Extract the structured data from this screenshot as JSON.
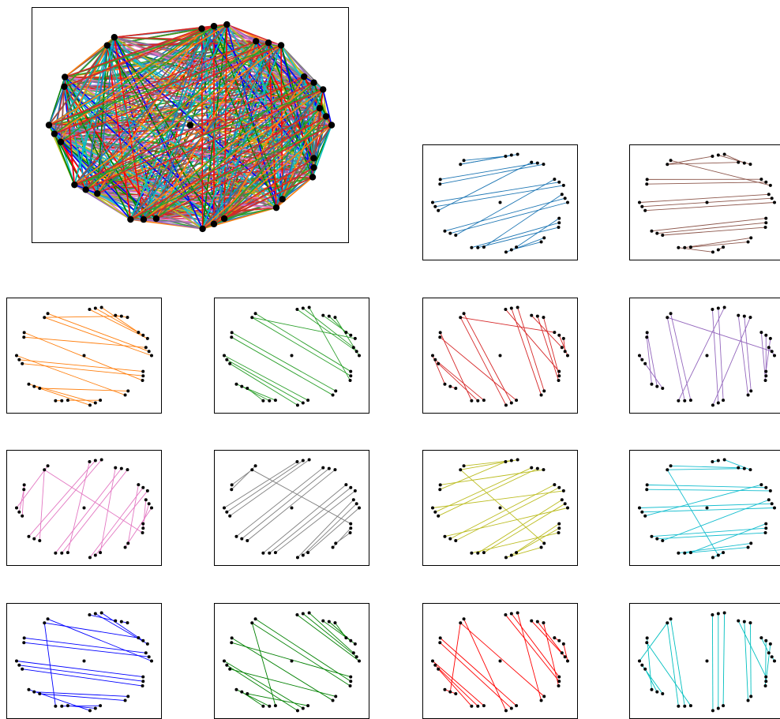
{
  "graph": {
    "node_count": 33,
    "hub_index": 32,
    "edge_colors": {
      "blue": "#1f77b4",
      "brown": "#8c564b",
      "orange": "#ff7f0e",
      "green": "#2ca02c",
      "red": "#d62728",
      "purple": "#9467bd",
      "pink": "#e377c2",
      "gray": "#7f7f7f",
      "olive": "#bcbd22",
      "cyan": "#17becf",
      "pure_blue": "#0000ff",
      "dark_green": "#008000",
      "pure_red": "#ff0000",
      "teal": "#00bfbf"
    },
    "node_color": "#000000"
  },
  "panels": [
    {
      "id": "composite",
      "color": "all"
    },
    {
      "id": "matching-1",
      "color": "blue"
    },
    {
      "id": "matching-2",
      "color": "brown"
    },
    {
      "id": "matching-3",
      "color": "orange"
    },
    {
      "id": "matching-4",
      "color": "green"
    },
    {
      "id": "matching-5",
      "color": "red"
    },
    {
      "id": "matching-6",
      "color": "purple"
    },
    {
      "id": "matching-7",
      "color": "pink"
    },
    {
      "id": "matching-8",
      "color": "gray"
    },
    {
      "id": "matching-9",
      "color": "olive"
    },
    {
      "id": "matching-10",
      "color": "cyan"
    },
    {
      "id": "matching-11",
      "color": "pure_blue"
    },
    {
      "id": "matching-12",
      "color": "dark_green"
    },
    {
      "id": "matching-13",
      "color": "pure_red"
    },
    {
      "id": "matching-14",
      "color": "teal"
    }
  ]
}
